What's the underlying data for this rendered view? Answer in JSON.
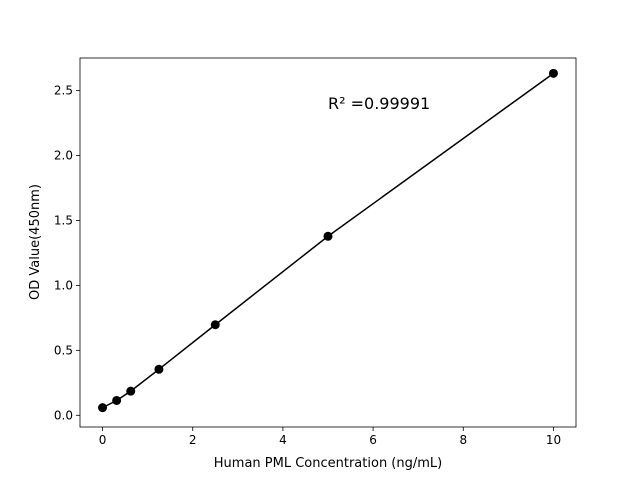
{
  "chart_data": {
    "type": "line",
    "title": "",
    "xlabel": "Human PML Concentration (ng/mL)",
    "ylabel": "OD Value(450nm)",
    "xlim": [
      -0.5,
      10.5
    ],
    "ylim": [
      -0.09,
      2.75
    ],
    "xticks": [
      0,
      2,
      4,
      6,
      8,
      10
    ],
    "xtick_labels": [
      "0",
      "2",
      "4",
      "6",
      "8",
      "10"
    ],
    "yticks": [
      0.0,
      0.5,
      1.0,
      1.5,
      2.0,
      2.5
    ],
    "ytick_labels": [
      "0.0",
      "0.5",
      "1.0",
      "1.5",
      "2.0",
      "2.5"
    ],
    "grid": false,
    "annotation": "R² =0.99991",
    "series": [
      {
        "x": [
          0,
          0.3125,
          0.625,
          1.25,
          2.5,
          5,
          10
        ],
        "y": [
          0.059,
          0.114,
          0.186,
          0.354,
          0.697,
          1.378,
          2.632
        ],
        "color": "#000000",
        "marker": "circle"
      }
    ]
  }
}
